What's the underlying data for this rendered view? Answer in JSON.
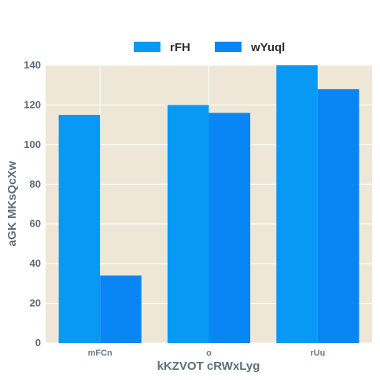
{
  "chart_data": {
    "type": "bar",
    "categories": [
      "mFCn",
      "o",
      "rUu"
    ],
    "series": [
      {
        "name": "rFH",
        "values": [
          115,
          120,
          140
        ],
        "color": "#0899f5"
      },
      {
        "name": "wYuql",
        "values": [
          34,
          116,
          128
        ],
        "color": "#0a85f5"
      }
    ],
    "xlabel": "kKZVOT cRWxLyg",
    "ylabel": "aGK MKsQcXw",
    "ylim": [
      0,
      140
    ],
    "yticks": [
      0,
      20,
      40,
      60,
      80,
      100,
      120,
      140
    ],
    "grid": true,
    "legend": "top-center",
    "plot_background": "#eee7d7",
    "grid_color": "#ffffff"
  }
}
